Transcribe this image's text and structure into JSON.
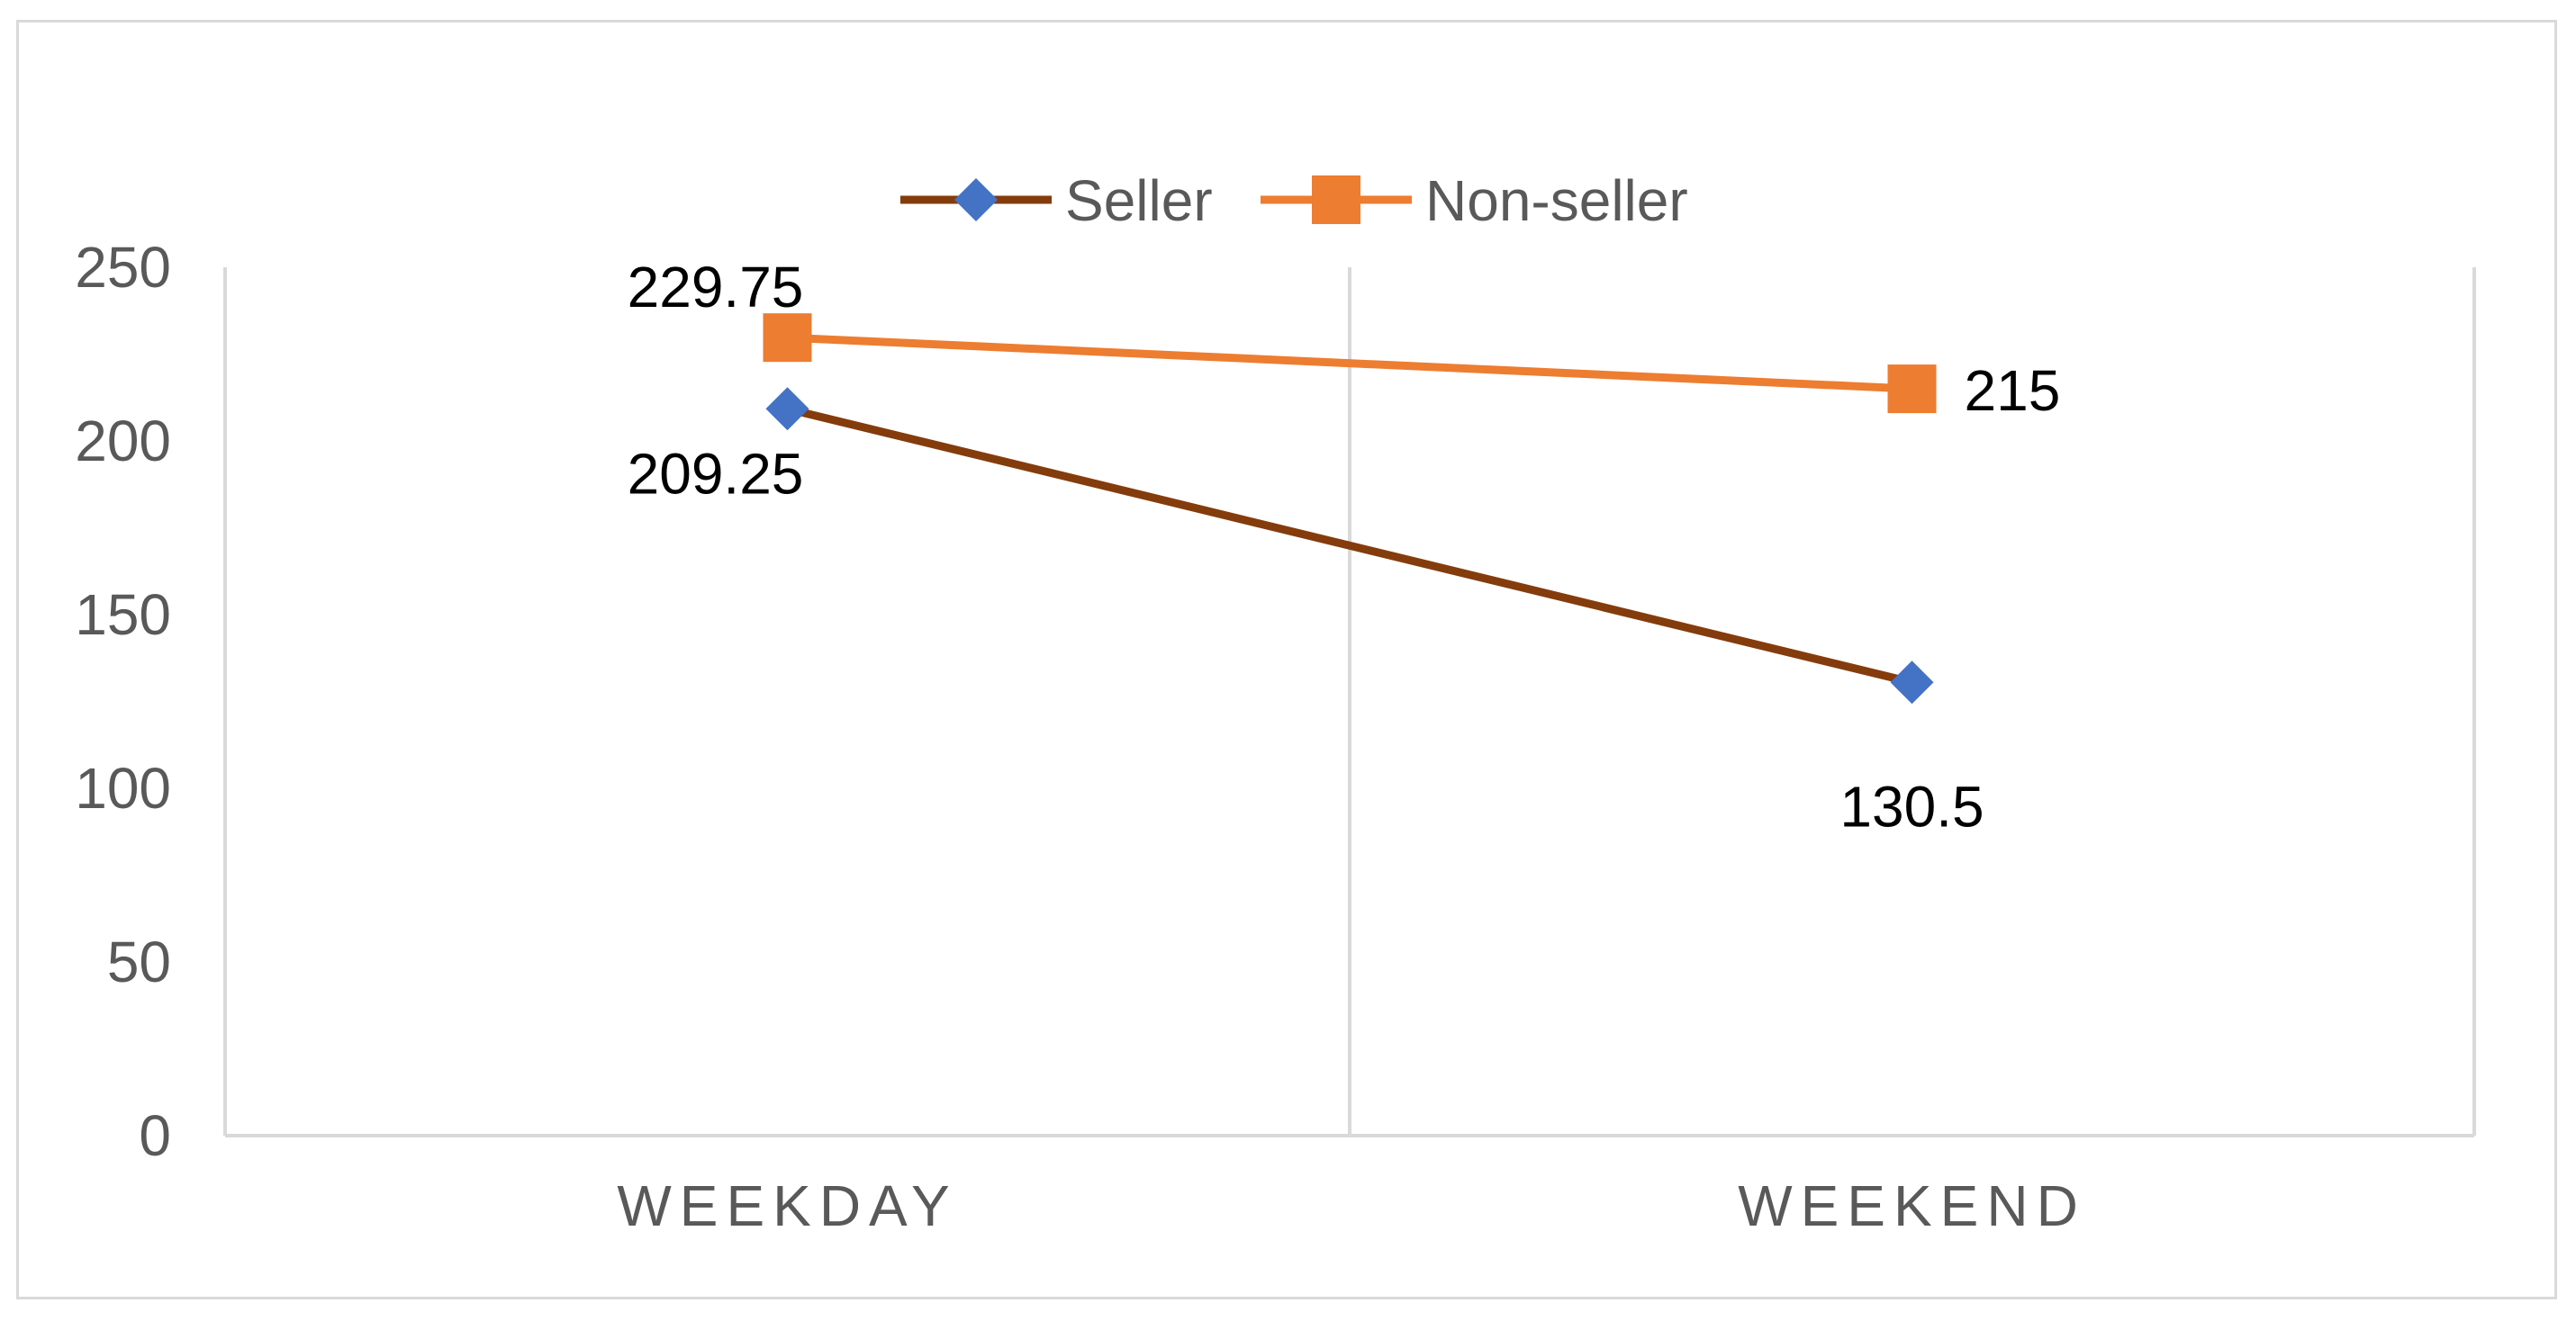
{
  "chart_data": {
    "type": "line",
    "title": "",
    "xlabel": "",
    "ylabel": "",
    "categories": [
      "WEEKDAY",
      "WEEKEND"
    ],
    "ylim": [
      0,
      250
    ],
    "yticks": [
      "0",
      "50",
      "100",
      "150",
      "200",
      "250"
    ],
    "grid": "vertical category separators",
    "legend": "top-center",
    "series": [
      {
        "name": "Seller",
        "values": [
          209.25,
          130.5
        ],
        "labels": [
          "209.25",
          "130.5"
        ],
        "line_color": "#843c0c",
        "marker": "diamond",
        "marker_color": "#4472c4"
      },
      {
        "name": "Non-seller",
        "values": [
          229.75,
          215
        ],
        "labels": [
          "229.75",
          "215"
        ],
        "line_color": "#ed7d31",
        "marker": "square",
        "marker_color": "#ed7d31"
      }
    ]
  }
}
